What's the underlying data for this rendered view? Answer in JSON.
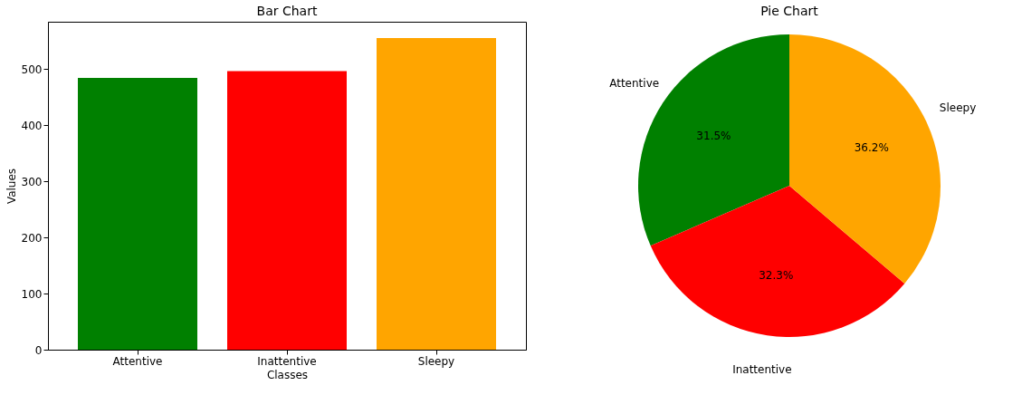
{
  "chart_data": [
    {
      "type": "bar",
      "title": "Bar Chart",
      "xlabel": "Classes",
      "ylabel": "Values",
      "categories": [
        "Attentive",
        "Inattentive",
        "Sleepy"
      ],
      "values": [
        484,
        496,
        555
      ],
      "colors": [
        "#008000",
        "#ff0000",
        "#ffa500"
      ],
      "ylim": [
        0,
        584
      ],
      "yticks": [
        0,
        100,
        200,
        300,
        400,
        500
      ],
      "grid": false
    },
    {
      "type": "pie",
      "title": "Pie Chart",
      "categories": [
        "Attentive",
        "Inattentive",
        "Sleepy"
      ],
      "values": [
        31.5,
        32.3,
        36.2
      ],
      "colors": [
        "#008000",
        "#ff0000",
        "#ffa500"
      ],
      "value_labels": [
        "31.5%",
        "32.3%",
        "36.2%"
      ]
    }
  ]
}
